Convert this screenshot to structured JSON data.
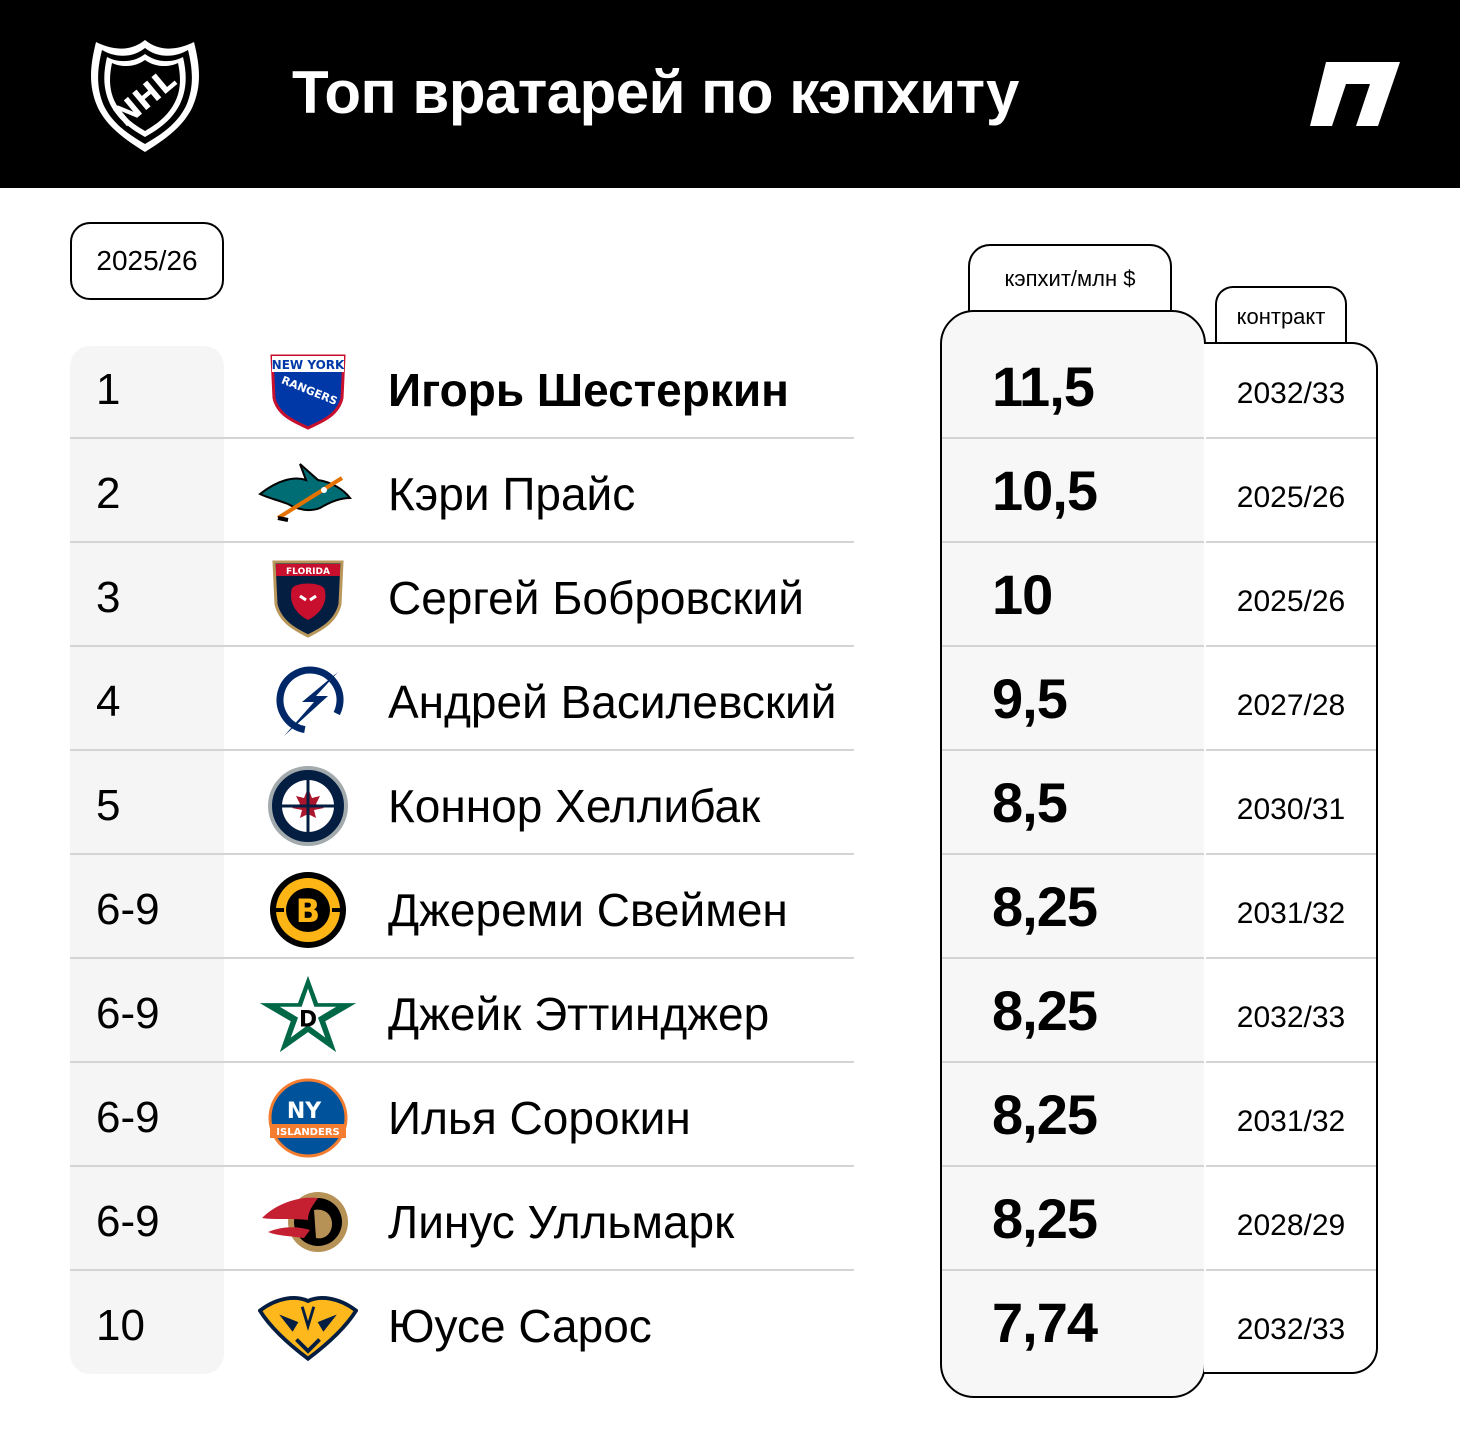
{
  "header": {
    "title": "Топ вратарей по кэпхиту"
  },
  "season": "2025/26",
  "columns": {
    "cap": "кэпхит/млн $",
    "contract": "контракт"
  },
  "rows": [
    {
      "rank": "1",
      "name": "Игорь Шестеркин",
      "cap": "11,5",
      "contract": "2032/33",
      "team_logo": "new-york-rangers-logo"
    },
    {
      "rank": "2",
      "name": "Кэри Прайс",
      "cap": "10,5",
      "contract": "2025/26",
      "team_logo": "san-jose-sharks-logo"
    },
    {
      "rank": "3",
      "name": "Сергей Бобровский",
      "cap": "10",
      "contract": "2025/26",
      "team_logo": "florida-panthers-logo"
    },
    {
      "rank": "4",
      "name": "Андрей Василевский",
      "cap": "9,5",
      "contract": "2027/28",
      "team_logo": "tampa-bay-lightning-logo"
    },
    {
      "rank": "5",
      "name": "Коннор Хеллибак",
      "cap": "8,5",
      "contract": "2030/31",
      "team_logo": "winnipeg-jets-logo"
    },
    {
      "rank": "6-9",
      "name": "Джереми Свеймен",
      "cap": "8,25",
      "contract": "2031/32",
      "team_logo": "boston-bruins-logo"
    },
    {
      "rank": "6-9",
      "name": "Джейк Эттинджер",
      "cap": "8,25",
      "contract": "2032/33",
      "team_logo": "dallas-stars-logo"
    },
    {
      "rank": "6-9",
      "name": "Илья Сорокин",
      "cap": "8,25",
      "contract": "2031/32",
      "team_logo": "new-york-islanders-logo"
    },
    {
      "rank": "6-9",
      "name": "Линус Улльмарк",
      "cap": "8,25",
      "contract": "2028/29",
      "team_logo": "ottawa-senators-logo"
    },
    {
      "rank": "10",
      "name": "Юусе Сарос",
      "cap": "7,74",
      "contract": "2032/33",
      "team_logo": "nashville-predators-logo"
    }
  ],
  "colors": {
    "header_bg": "#000000",
    "rank_bg": "#f5f5f5",
    "cap_bg": "#f7f7f7",
    "separator": "#d4d4d4"
  }
}
